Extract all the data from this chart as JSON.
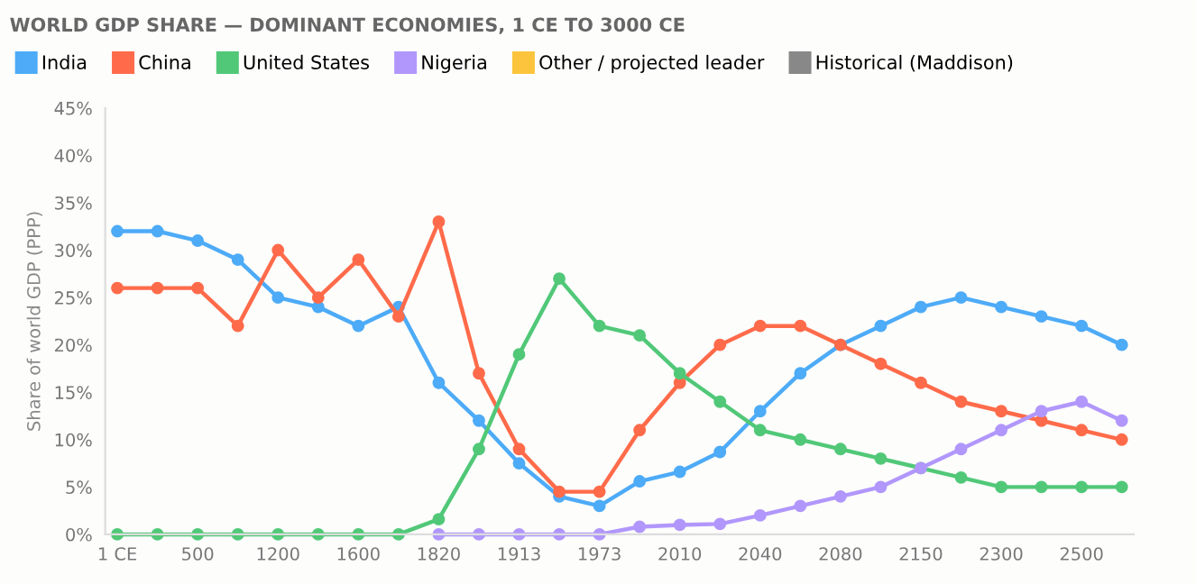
{
  "chart_data": {
    "type": "line",
    "title": "WORLD GDP SHARE — DOMINANT ECONOMIES, 1 CE TO 3000 CE",
    "ylabel": "Share of world GDP (PPP)",
    "categories": [
      "1 CE",
      null,
      "500",
      null,
      "1200",
      null,
      "1600",
      null,
      "1820",
      null,
      "1913",
      null,
      "1973",
      null,
      "2010",
      null,
      "2040",
      null,
      "2080",
      null,
      "2150",
      null,
      "2300",
      null,
      "2500",
      null
    ],
    "series": [
      {
        "name": "India",
        "color": "#4dabf7",
        "values": [
          32,
          32,
          31,
          29,
          25,
          24,
          22,
          24,
          16,
          12,
          7.5,
          4,
          3,
          5.6,
          6.6,
          8.7,
          13,
          17,
          20,
          22,
          24,
          25,
          24,
          23,
          22,
          20
        ]
      },
      {
        "name": "China",
        "color": "#ff6b4a",
        "values": [
          26,
          26,
          26,
          22,
          30,
          25,
          29,
          23,
          33,
          17,
          9,
          4.5,
          4.5,
          11,
          16,
          20,
          22,
          22,
          20,
          18,
          16,
          14,
          13,
          12,
          11,
          10
        ]
      },
      {
        "name": "United States",
        "color": "#51c878",
        "values": [
          0,
          0,
          0,
          0,
          0,
          0,
          0,
          0,
          1.6,
          9,
          19,
          27,
          22,
          21,
          17,
          14,
          11,
          10,
          9,
          8,
          7,
          6,
          5,
          5,
          5,
          5
        ]
      },
      {
        "name": "Nigeria",
        "color": "#b197fc",
        "values": [
          null,
          null,
          null,
          null,
          null,
          null,
          null,
          null,
          0,
          0,
          0,
          0,
          0,
          0.8,
          1,
          1.1,
          2,
          3,
          4,
          5,
          7,
          9,
          11,
          13,
          14,
          12
        ]
      },
      {
        "name": "Other / projected leader",
        "color": "#fcc43d",
        "values": [
          null,
          null,
          null,
          null,
          null,
          null,
          null,
          null,
          null,
          null,
          null,
          null,
          null,
          null,
          null,
          null,
          null,
          null,
          null,
          null,
          null,
          null,
          null,
          null,
          null,
          null
        ]
      },
      {
        "name": "Historical (Maddison)",
        "color": "#888888",
        "values": [
          null,
          null,
          null,
          null,
          null,
          null,
          null,
          null,
          null,
          null,
          null,
          null,
          null,
          null,
          null,
          null,
          null,
          null,
          null,
          null,
          null,
          null,
          null,
          null,
          null,
          null
        ]
      }
    ],
    "ylim": [
      0,
      45
    ],
    "yticks": [
      {
        "value": 0,
        "label": "0%"
      },
      {
        "value": 5,
        "label": "5%"
      },
      {
        "value": 10,
        "label": "10%"
      },
      {
        "value": 15,
        "label": "15%"
      },
      {
        "value": 20,
        "label": "20%"
      },
      {
        "value": 25,
        "label": "25%"
      },
      {
        "value": 30,
        "label": "30%"
      },
      {
        "value": 35,
        "label": "35%"
      },
      {
        "value": 40,
        "label": "40%"
      },
      {
        "value": 45,
        "label": "45%"
      }
    ],
    "grid": false,
    "legend": "top left",
    "marker": "circle",
    "line_style": "solid"
  }
}
